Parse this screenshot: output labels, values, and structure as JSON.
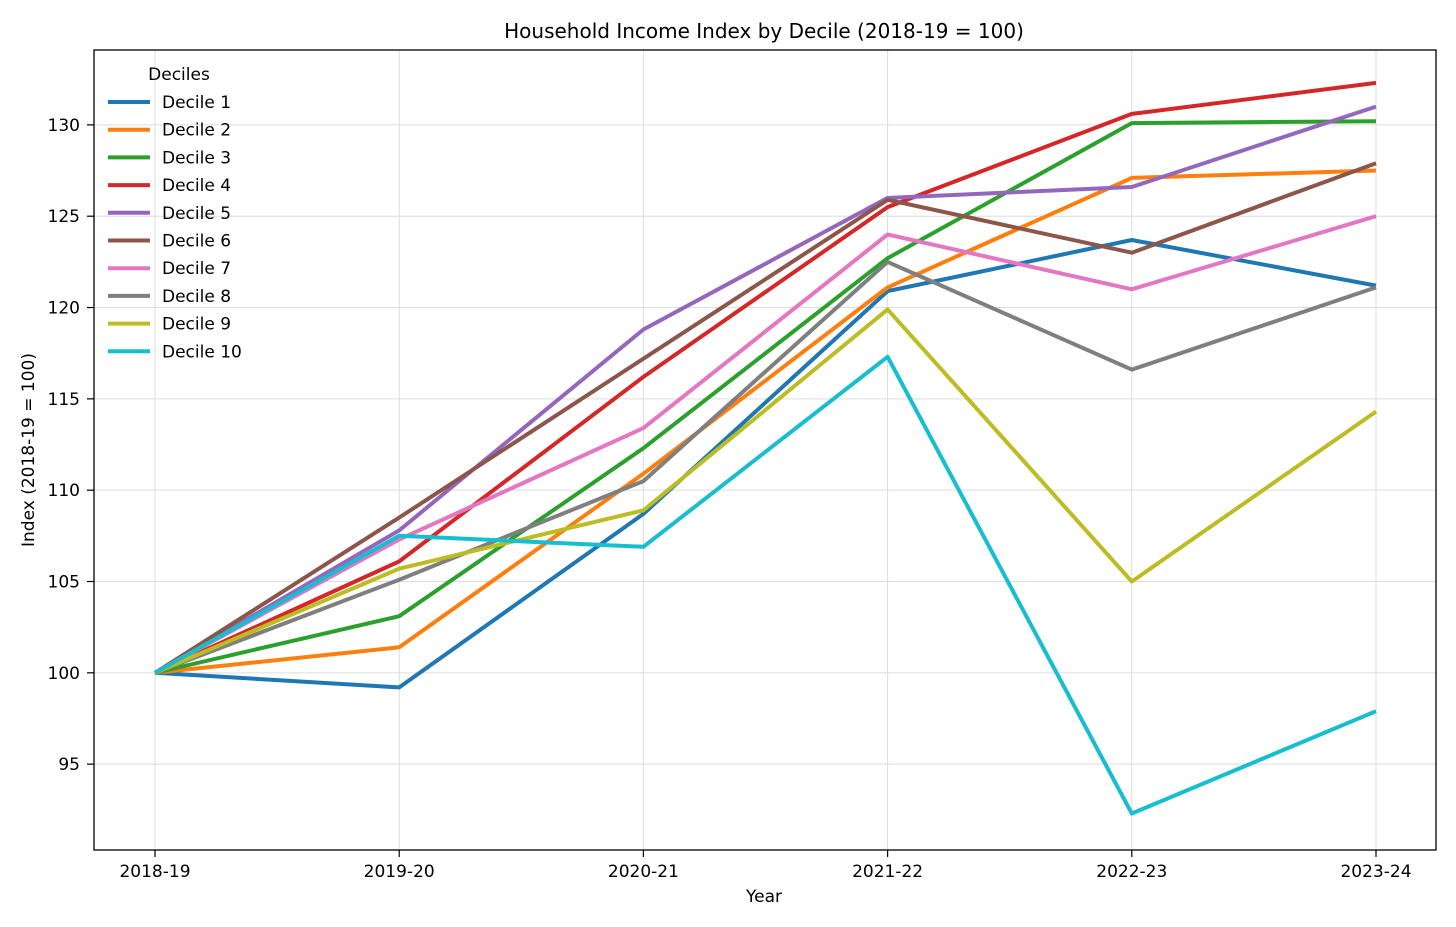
{
  "chart_data": {
    "type": "line",
    "title": "Household Income Index by Decile (2018-19 = 100)",
    "xlabel": "Year",
    "ylabel": "Index (2018-19 = 100)",
    "categories": [
      "2018-19",
      "2019-20",
      "2020-21",
      "2021-22",
      "2022-23",
      "2023-24"
    ],
    "ylim": [
      90.3,
      134.1
    ],
    "yticks": [
      95,
      100,
      105,
      110,
      115,
      120,
      125,
      130
    ],
    "grid": true,
    "legend": {
      "title": "Deciles",
      "position": "top-left"
    },
    "series": [
      {
        "name": "Decile 1",
        "color": "#1f77b4",
        "values": [
          100,
          99.2,
          108.7,
          120.9,
          123.7,
          121.2
        ]
      },
      {
        "name": "Decile 2",
        "color": "#ff7f0e",
        "values": [
          100,
          101.4,
          110.9,
          121.1,
          127.1,
          127.5
        ]
      },
      {
        "name": "Decile 3",
        "color": "#2ca02c",
        "values": [
          100,
          103.1,
          112.3,
          122.7,
          130.1,
          130.2
        ]
      },
      {
        "name": "Decile 4",
        "color": "#d62728",
        "values": [
          100,
          106.1,
          116.2,
          125.5,
          130.6,
          132.3
        ]
      },
      {
        "name": "Decile 5",
        "color": "#9467bd",
        "values": [
          100,
          107.8,
          118.8,
          126.0,
          126.6,
          131.0
        ]
      },
      {
        "name": "Decile 6",
        "color": "#8c564b",
        "values": [
          100,
          108.5,
          117.2,
          125.9,
          123.0,
          127.9
        ]
      },
      {
        "name": "Decile 7",
        "color": "#e377c2",
        "values": [
          100,
          107.3,
          113.4,
          124.0,
          121.0,
          125.0
        ]
      },
      {
        "name": "Decile 8",
        "color": "#7f7f7f",
        "values": [
          100,
          105.1,
          110.5,
          122.5,
          116.6,
          121.1
        ]
      },
      {
        "name": "Decile 9",
        "color": "#bcbd22",
        "values": [
          100,
          105.7,
          108.9,
          119.9,
          105.0,
          114.3
        ]
      },
      {
        "name": "Decile 10",
        "color": "#17becf",
        "values": [
          100,
          107.5,
          106.9,
          117.3,
          92.3,
          97.9
        ]
      }
    ]
  }
}
